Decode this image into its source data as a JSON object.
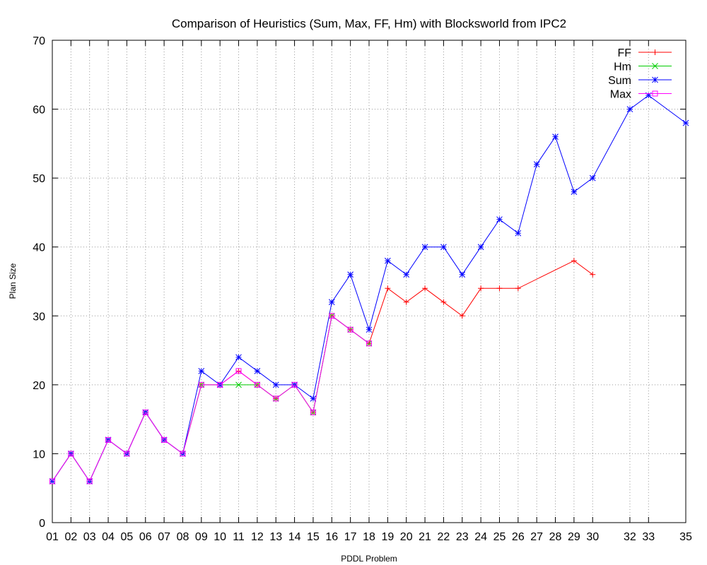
{
  "chart_data": {
    "type": "line",
    "title": "Comparison of Heuristics (Sum, Max, FF, Hm) with Blocksworld from IPC2",
    "xlabel": "PDDL Problem",
    "ylabel": "Plan Size",
    "ylim": [
      0,
      70
    ],
    "yticks": [
      0,
      10,
      20,
      30,
      40,
      50,
      60,
      70
    ],
    "xlim": [
      1,
      35
    ],
    "xticks": [
      {
        "value": 1,
        "label": "01"
      },
      {
        "value": 2,
        "label": "02"
      },
      {
        "value": 3,
        "label": "03"
      },
      {
        "value": 4,
        "label": "04"
      },
      {
        "value": 5,
        "label": "05"
      },
      {
        "value": 6,
        "label": "06"
      },
      {
        "value": 7,
        "label": "07"
      },
      {
        "value": 8,
        "label": "08"
      },
      {
        "value": 9,
        "label": "09"
      },
      {
        "value": 10,
        "label": "10"
      },
      {
        "value": 11,
        "label": "11"
      },
      {
        "value": 12,
        "label": "12"
      },
      {
        "value": 13,
        "label": "13"
      },
      {
        "value": 14,
        "label": "14"
      },
      {
        "value": 15,
        "label": "15"
      },
      {
        "value": 16,
        "label": "16"
      },
      {
        "value": 17,
        "label": "17"
      },
      {
        "value": 18,
        "label": "18"
      },
      {
        "value": 19,
        "label": "19"
      },
      {
        "value": 20,
        "label": "20"
      },
      {
        "value": 21,
        "label": "21"
      },
      {
        "value": 22,
        "label": "22"
      },
      {
        "value": 23,
        "label": "23"
      },
      {
        "value": 24,
        "label": "24"
      },
      {
        "value": 25,
        "label": "25"
      },
      {
        "value": 26,
        "label": "26"
      },
      {
        "value": 27,
        "label": "27"
      },
      {
        "value": 28,
        "label": "28"
      },
      {
        "value": 29,
        "label": "29"
      },
      {
        "value": 30,
        "label": "30"
      },
      {
        "value": 32,
        "label": "32"
      },
      {
        "value": 33,
        "label": "33"
      },
      {
        "value": 35,
        "label": "35"
      }
    ],
    "grid": true,
    "legend_position": "top-right",
    "series": [
      {
        "name": "FF",
        "color": "#ff0000",
        "marker": "plus",
        "x": [
          1,
          2,
          3,
          4,
          5,
          6,
          7,
          8,
          9,
          10,
          11,
          12,
          13,
          14,
          15,
          16,
          17,
          18,
          19,
          20,
          21,
          22,
          23,
          24,
          25,
          26,
          29,
          30
        ],
        "y": [
          6,
          10,
          6,
          12,
          10,
          16,
          12,
          10,
          20,
          20,
          22,
          20,
          18,
          20,
          16,
          30,
          28,
          26,
          34,
          32,
          34,
          32,
          30,
          34,
          34,
          34,
          38,
          36
        ]
      },
      {
        "name": "Hm",
        "color": "#00cc00",
        "marker": "cross",
        "x": [
          1,
          2,
          3,
          4,
          5,
          6,
          7,
          8,
          9,
          10,
          11,
          12,
          13,
          14,
          15,
          16,
          17,
          18
        ],
        "y": [
          6,
          10,
          6,
          12,
          10,
          16,
          12,
          10,
          20,
          20,
          20,
          20,
          18,
          20,
          16,
          30,
          28,
          26
        ]
      },
      {
        "name": "Sum",
        "color": "#0000ff",
        "marker": "star",
        "x": [
          1,
          2,
          3,
          4,
          5,
          6,
          7,
          8,
          9,
          10,
          11,
          12,
          13,
          14,
          15,
          16,
          17,
          18,
          19,
          20,
          21,
          22,
          23,
          24,
          25,
          26,
          27,
          28,
          29,
          30,
          32,
          33,
          35
        ],
        "y": [
          6,
          10,
          6,
          12,
          10,
          16,
          12,
          10,
          22,
          20,
          24,
          22,
          20,
          20,
          18,
          32,
          36,
          28,
          38,
          36,
          40,
          40,
          36,
          40,
          44,
          42,
          52,
          56,
          48,
          50,
          60,
          62,
          58
        ]
      },
      {
        "name": "Max",
        "color": "#ff00ff",
        "marker": "square",
        "x": [
          1,
          2,
          3,
          4,
          5,
          6,
          7,
          8,
          9,
          10,
          11,
          12,
          13,
          14,
          15,
          16,
          17,
          18
        ],
        "y": [
          6,
          10,
          6,
          12,
          10,
          16,
          12,
          10,
          20,
          20,
          22,
          20,
          18,
          20,
          16,
          30,
          28,
          26
        ]
      }
    ]
  }
}
